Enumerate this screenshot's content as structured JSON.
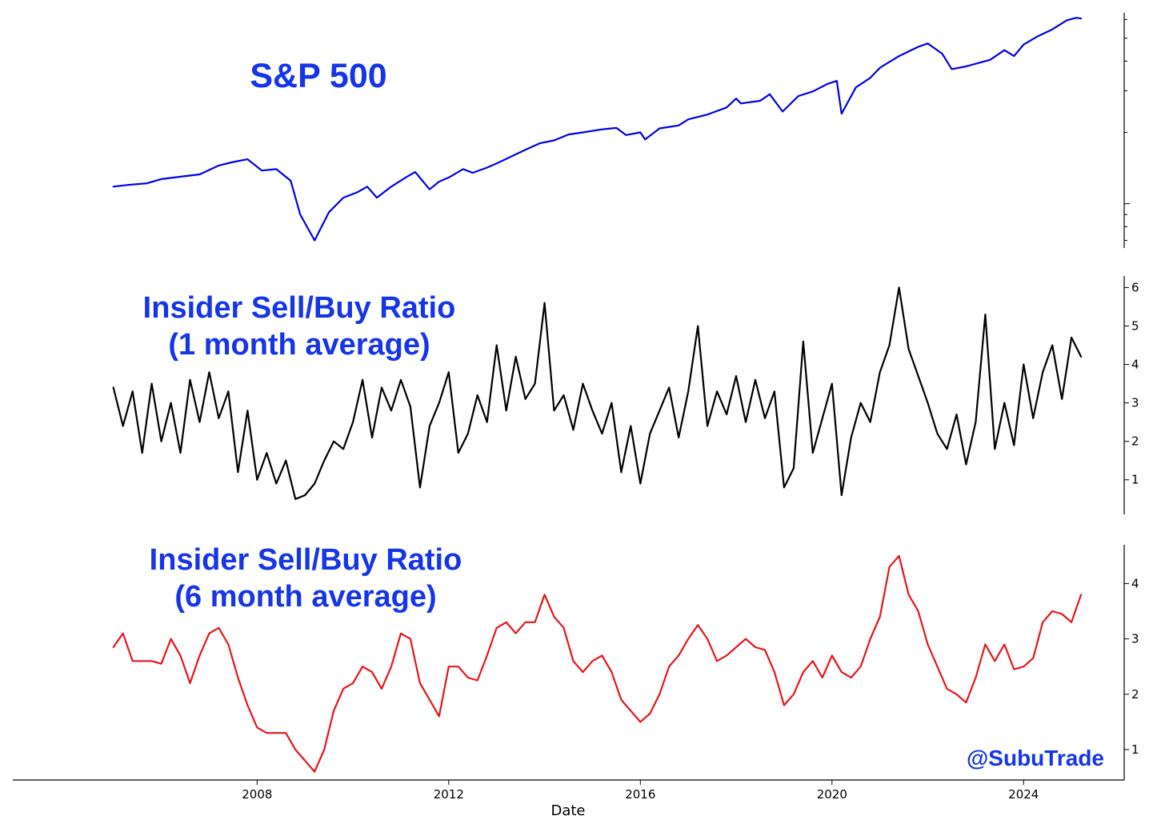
{
  "colors": {
    "sp500": "#0000e6",
    "ratio_1m": "#000000",
    "ratio_6m": "#e8141a",
    "title": "#1535e8"
  },
  "titles": {
    "sp500": "S&P 500",
    "ratio_1m_line1": "Insider Sell/Buy Ratio",
    "ratio_1m_line2": "(1 month average)",
    "ratio_6m_line1": "Insider Sell/Buy Ratio",
    "ratio_6m_line2": "(6 month average)"
  },
  "watermark": "@SubuTrade",
  "chart_data": [
    {
      "type": "line",
      "title": "S&P 500",
      "xlabel": "",
      "ylabel": "",
      "y_scale": "log",
      "ylim": [
        650,
        6400
      ],
      "y_tick_labels": [],
      "series": [
        {
          "x": [
            2005.0,
            2005.3,
            2005.7,
            2006.0,
            2006.4,
            2006.8,
            2007.2,
            2007.5,
            2007.8,
            2008.1,
            2008.4,
            2008.7,
            2008.9,
            2009.2,
            2009.5,
            2009.8,
            2010.1,
            2010.3,
            2010.5,
            2010.8,
            2011.1,
            2011.3,
            2011.6,
            2011.8,
            2012.0,
            2012.3,
            2012.5,
            2012.8,
            2013.0,
            2013.3,
            2013.6,
            2013.9,
            2014.2,
            2014.5,
            2014.8,
            2015.2,
            2015.5,
            2015.7,
            2016.0,
            2016.1,
            2016.4,
            2016.8,
            2017.0,
            2017.4,
            2017.8,
            2018.0,
            2018.1,
            2018.5,
            2018.7,
            2018.97,
            2019.3,
            2019.6,
            2019.9,
            2020.1,
            2020.2,
            2020.5,
            2020.8,
            2021.0,
            2021.4,
            2021.8,
            2022.0,
            2022.3,
            2022.5,
            2022.8,
            2023.0,
            2023.3,
            2023.6,
            2023.8,
            2024.0,
            2024.3,
            2024.6,
            2024.9,
            2025.1,
            2025.2
          ],
          "values": [
            1180,
            1200,
            1220,
            1270,
            1300,
            1330,
            1450,
            1500,
            1540,
            1380,
            1400,
            1250,
            900,
            700,
            920,
            1060,
            1120,
            1180,
            1060,
            1180,
            1290,
            1360,
            1150,
            1240,
            1290,
            1400,
            1350,
            1420,
            1480,
            1580,
            1690,
            1800,
            1850,
            1960,
            2000,
            2060,
            2090,
            1950,
            2000,
            1870,
            2080,
            2140,
            2270,
            2380,
            2550,
            2780,
            2650,
            2720,
            2900,
            2450,
            2850,
            2980,
            3200,
            3300,
            2400,
            3100,
            3400,
            3750,
            4200,
            4600,
            4750,
            4300,
            3700,
            3800,
            3900,
            4050,
            4450,
            4200,
            4700,
            5100,
            5450,
            5950,
            6100,
            6050
          ]
        }
      ]
    },
    {
      "type": "line",
      "title": "Insider Sell/Buy Ratio (1 month average)",
      "xlabel": "",
      "ylabel": "",
      "ylim": [
        0.1,
        6.3
      ],
      "y_ticks": [
        1,
        2,
        3,
        4,
        5,
        6
      ],
      "series": [
        {
          "x": [
            2005.0,
            2005.2,
            2005.4,
            2005.6,
            2005.8,
            2006.0,
            2006.2,
            2006.4,
            2006.6,
            2006.8,
            2007.0,
            2007.2,
            2007.4,
            2007.6,
            2007.8,
            2008.0,
            2008.2,
            2008.4,
            2008.6,
            2008.8,
            2009.0,
            2009.2,
            2009.4,
            2009.6,
            2009.8,
            2010.0,
            2010.2,
            2010.4,
            2010.6,
            2010.8,
            2011.0,
            2011.2,
            2011.4,
            2011.6,
            2011.8,
            2012.0,
            2012.2,
            2012.4,
            2012.6,
            2012.8,
            2013.0,
            2013.2,
            2013.4,
            2013.6,
            2013.8,
            2014.0,
            2014.2,
            2014.4,
            2014.6,
            2014.8,
            2015.0,
            2015.2,
            2015.4,
            2015.6,
            2015.8,
            2016.0,
            2016.2,
            2016.4,
            2016.6,
            2016.8,
            2017.0,
            2017.2,
            2017.4,
            2017.6,
            2017.8,
            2018.0,
            2018.2,
            2018.4,
            2018.6,
            2018.8,
            2019.0,
            2019.2,
            2019.4,
            2019.6,
            2019.8,
            2020.0,
            2020.2,
            2020.4,
            2020.6,
            2020.8,
            2021.0,
            2021.2,
            2021.4,
            2021.6,
            2021.8,
            2022.0,
            2022.2,
            2022.4,
            2022.6,
            2022.8,
            2023.0,
            2023.2,
            2023.4,
            2023.6,
            2023.8,
            2024.0,
            2024.2,
            2024.4,
            2024.6,
            2024.8,
            2025.0,
            2025.2
          ],
          "values": [
            3.4,
            2.4,
            3.3,
            1.7,
            3.5,
            2.0,
            3.0,
            1.7,
            3.6,
            2.5,
            3.8,
            2.6,
            3.3,
            1.2,
            2.8,
            1.0,
            1.7,
            0.9,
            1.5,
            0.5,
            0.6,
            0.9,
            1.5,
            2.0,
            1.8,
            2.5,
            3.6,
            2.1,
            3.4,
            2.8,
            3.6,
            2.9,
            0.8,
            2.4,
            3.0,
            3.8,
            1.7,
            2.2,
            3.2,
            2.5,
            4.5,
            2.8,
            4.2,
            3.1,
            3.5,
            5.6,
            2.8,
            3.2,
            2.3,
            3.5,
            2.8,
            2.2,
            3.0,
            1.2,
            2.4,
            0.9,
            2.2,
            2.8,
            3.4,
            2.1,
            3.3,
            5.0,
            2.4,
            3.3,
            2.7,
            3.7,
            2.5,
            3.6,
            2.6,
            3.3,
            0.8,
            1.3,
            4.6,
            1.7,
            2.6,
            3.5,
            0.6,
            2.1,
            3.0,
            2.5,
            3.8,
            4.5,
            6.0,
            4.4,
            3.7,
            3.0,
            2.2,
            1.8,
            2.7,
            1.4,
            2.5,
            5.3,
            1.8,
            3.0,
            1.9,
            4.0,
            2.6,
            3.8,
            4.5,
            3.1,
            4.7,
            4.2
          ]
        }
      ]
    },
    {
      "type": "line",
      "title": "Insider Sell/Buy Ratio (6 month average)",
      "xlabel": "Date",
      "ylabel": "",
      "xlim": [
        2002.9,
        2026.1
      ],
      "x_ticks": [
        2008,
        2012,
        2016,
        2020,
        2024
      ],
      "ylim": [
        0.45,
        4.7
      ],
      "y_ticks": [
        1,
        2,
        3,
        4
      ],
      "series": [
        {
          "x": [
            2005.0,
            2005.2,
            2005.4,
            2005.6,
            2005.8,
            2006.0,
            2006.2,
            2006.4,
            2006.6,
            2006.8,
            2007.0,
            2007.2,
            2007.4,
            2007.6,
            2007.8,
            2008.0,
            2008.2,
            2008.4,
            2008.6,
            2008.8,
            2009.0,
            2009.2,
            2009.4,
            2009.6,
            2009.8,
            2010.0,
            2010.2,
            2010.4,
            2010.6,
            2010.8,
            2011.0,
            2011.2,
            2011.4,
            2011.6,
            2011.8,
            2012.0,
            2012.2,
            2012.4,
            2012.6,
            2012.8,
            2013.0,
            2013.2,
            2013.4,
            2013.6,
            2013.8,
            2014.0,
            2014.2,
            2014.4,
            2014.6,
            2014.8,
            2015.0,
            2015.2,
            2015.4,
            2015.6,
            2015.8,
            2016.0,
            2016.2,
            2016.4,
            2016.6,
            2016.8,
            2017.0,
            2017.2,
            2017.4,
            2017.6,
            2017.8,
            2018.0,
            2018.2,
            2018.4,
            2018.6,
            2018.8,
            2019.0,
            2019.2,
            2019.4,
            2019.6,
            2019.8,
            2020.0,
            2020.2,
            2020.4,
            2020.6,
            2020.8,
            2021.0,
            2021.2,
            2021.4,
            2021.6,
            2021.8,
            2022.0,
            2022.2,
            2022.4,
            2022.6,
            2022.8,
            2023.0,
            2023.2,
            2023.4,
            2023.6,
            2023.8,
            2024.0,
            2024.2,
            2024.4,
            2024.6,
            2024.8,
            2025.0,
            2025.2
          ],
          "values": [
            2.85,
            3.1,
            2.6,
            2.6,
            2.6,
            2.55,
            3.0,
            2.7,
            2.2,
            2.7,
            3.1,
            3.2,
            2.9,
            2.3,
            1.8,
            1.4,
            1.3,
            1.3,
            1.3,
            1.0,
            0.8,
            0.6,
            1.0,
            1.7,
            2.1,
            2.2,
            2.5,
            2.4,
            2.1,
            2.5,
            3.1,
            3.0,
            2.2,
            1.9,
            1.6,
            2.5,
            2.5,
            2.3,
            2.25,
            2.7,
            3.2,
            3.3,
            3.1,
            3.3,
            3.3,
            3.8,
            3.4,
            3.2,
            2.6,
            2.4,
            2.6,
            2.7,
            2.4,
            1.9,
            1.7,
            1.5,
            1.65,
            2.0,
            2.5,
            2.7,
            3.0,
            3.25,
            3.0,
            2.6,
            2.7,
            2.85,
            3.0,
            2.85,
            2.8,
            2.4,
            1.8,
            2.0,
            2.4,
            2.6,
            2.3,
            2.7,
            2.4,
            2.3,
            2.5,
            3.0,
            3.4,
            4.3,
            4.5,
            3.8,
            3.5,
            2.9,
            2.5,
            2.1,
            2.0,
            1.85,
            2.3,
            2.9,
            2.6,
            2.9,
            2.45,
            2.5,
            2.65,
            3.3,
            3.5,
            3.45,
            3.3,
            3.8
          ]
        }
      ]
    }
  ]
}
